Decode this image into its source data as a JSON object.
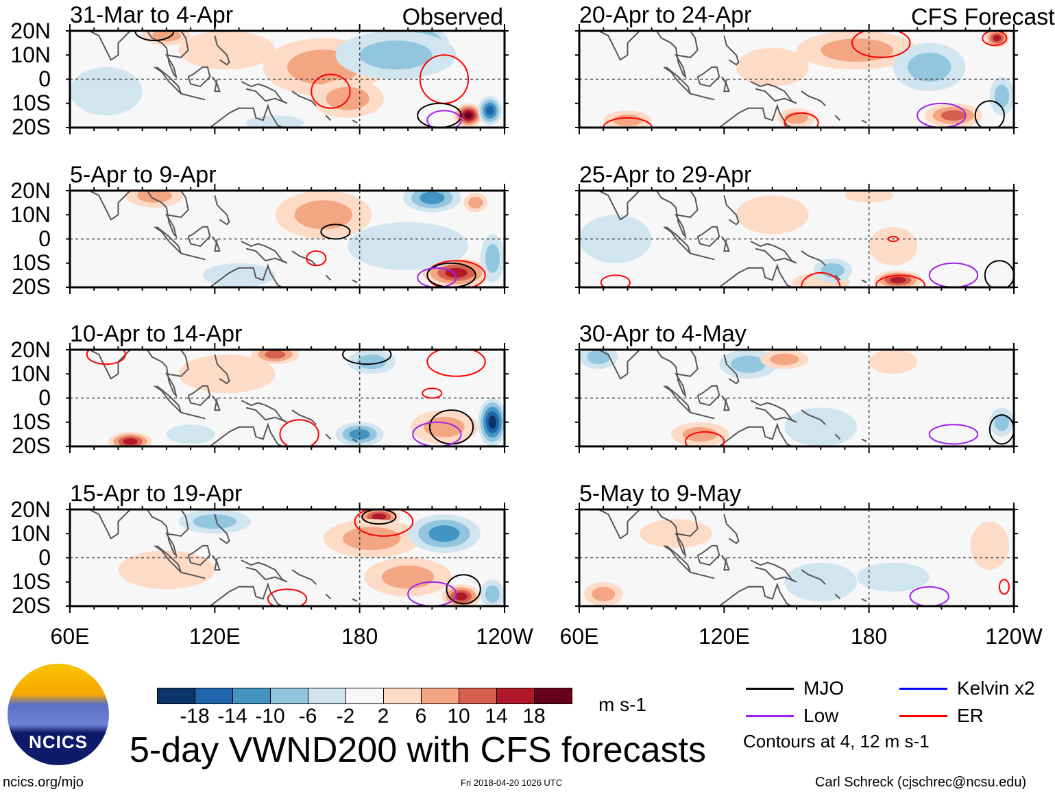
{
  "column_labels": {
    "left": "Observed",
    "right": "CFS Forecast"
  },
  "lat_ticks": [
    "20N",
    "10N",
    "0",
    "10S",
    "20S"
  ],
  "lon_ticks": [
    "60E",
    "120E",
    "180",
    "120W"
  ],
  "colors": [
    "#0b3468",
    "#2166ac",
    "#4393c3",
    "#92c5de",
    "#d1e5f0",
    "#f7f7f7",
    "#fddbc7",
    "#f4a582",
    "#d6604d",
    "#b2182b",
    "#67001f"
  ],
  "colorbar": {
    "labels": [
      "-18",
      "-14",
      "-10",
      "-6",
      "-2",
      "2",
      "6",
      "10",
      "14",
      "18"
    ],
    "units": "m s-1"
  },
  "legend": {
    "items": [
      {
        "label": "MJO",
        "color": "#000000"
      },
      {
        "label": "Kelvin x2",
        "color": "#0000ff"
      },
      {
        "label": "Low",
        "color": "#a020f0"
      },
      {
        "label": "ER",
        "color": "#ff0000"
      }
    ],
    "note": "Contours at 4, 12 m s-1"
  },
  "title": "5-day VWND200 with CFS forecasts",
  "logo_text": "NCICS",
  "footer": {
    "left": "ncics.org/mjo",
    "center": "Fri 2018-04-20 1026 UTC",
    "right": "Carl Schreck (cjschrec@ncsu.edu)"
  },
  "chart_data": {
    "type": "heatmap",
    "variable": "200-hPa meridional wind anomaly",
    "xlim": [
      60,
      240
    ],
    "ylim": [
      -20,
      20
    ],
    "panels": [
      {
        "title": "31-Mar to 4-Apr",
        "column": "left",
        "anomalies": [
          [
            125,
            12,
            5,
            20,
            8
          ],
          [
            165,
            5,
            6,
            25,
            12
          ],
          [
            175,
            -8,
            7,
            15,
            8
          ],
          [
            205,
            15,
            -14,
            12,
            7
          ],
          [
            195,
            10,
            -6,
            25,
            10
          ],
          [
            225,
            -15,
            18,
            6,
            5
          ],
          [
            234,
            -13,
            -16,
            5,
            6
          ],
          [
            100,
            18,
            6,
            10,
            4
          ],
          [
            75,
            -5,
            -3,
            15,
            10
          ],
          [
            145,
            -18,
            -5,
            12,
            3
          ]
        ],
        "contours": [
          [
            "ER",
            168,
            -5,
            8,
            7
          ],
          [
            "ER",
            215,
            0,
            10,
            10
          ],
          [
            "MJO",
            213,
            -15,
            9,
            5
          ],
          [
            "Low",
            215,
            -17,
            7,
            4
          ],
          [
            "MJO",
            95,
            20,
            8,
            4
          ]
        ]
      },
      {
        "title": "5-Apr to 9-Apr",
        "column": "left",
        "anomalies": [
          [
            95,
            18,
            7,
            12,
            5
          ],
          [
            165,
            10,
            6,
            20,
            10
          ],
          [
            220,
            -14,
            16,
            14,
            6
          ],
          [
            210,
            17,
            -12,
            12,
            6
          ],
          [
            235,
            -8,
            -6,
            5,
            10
          ],
          [
            200,
            -3,
            -4,
            25,
            10
          ],
          [
            130,
            -15,
            -5,
            15,
            5
          ],
          [
            228,
            15,
            8,
            5,
            4
          ]
        ],
        "contours": [
          [
            "MJO",
            170,
            3,
            6,
            3
          ],
          [
            "ER",
            220,
            -15,
            12,
            6
          ],
          [
            "MJO",
            218,
            -15,
            10,
            5
          ],
          [
            "Low",
            212,
            -16,
            8,
            4
          ],
          [
            "ER",
            162,
            -8,
            4,
            3
          ]
        ]
      },
      {
        "title": "10-Apr to 14-Apr",
        "column": "left",
        "anomalies": [
          [
            85,
            -18,
            15,
            9,
            4
          ],
          [
            145,
            18,
            12,
            10,
            4
          ],
          [
            235,
            -10,
            -18,
            6,
            10
          ],
          [
            185,
            15,
            -8,
            10,
            5
          ],
          [
            215,
            -12,
            8,
            14,
            7
          ],
          [
            180,
            -15,
            -10,
            10,
            5
          ],
          [
            125,
            10,
            4,
            20,
            8
          ],
          [
            110,
            -15,
            -5,
            10,
            4
          ]
        ],
        "contours": [
          [
            "ER",
            75,
            18,
            8,
            4
          ],
          [
            "ER",
            220,
            15,
            12,
            6
          ],
          [
            "ER",
            155,
            -15,
            8,
            6
          ],
          [
            "MJO",
            218,
            -12,
            9,
            7
          ],
          [
            "Low",
            212,
            -15,
            10,
            5
          ],
          [
            "MJO",
            183,
            18,
            10,
            4
          ],
          [
            "ER",
            210,
            2,
            4,
            2
          ]
        ]
      },
      {
        "title": "15-Apr to 19-Apr",
        "column": "left",
        "anomalies": [
          [
            188,
            17,
            16,
            9,
            4
          ],
          [
            185,
            8,
            6,
            20,
            8
          ],
          [
            200,
            -8,
            6,
            18,
            8
          ],
          [
            222,
            -16,
            14,
            8,
            5
          ],
          [
            215,
            10,
            -10,
            15,
            8
          ],
          [
            235,
            -15,
            -8,
            5,
            6
          ],
          [
            120,
            15,
            -6,
            15,
            5
          ],
          [
            100,
            -5,
            3,
            20,
            8
          ]
        ],
        "contours": [
          [
            "ER",
            190,
            15,
            12,
            6
          ],
          [
            "MJO",
            188,
            17,
            7,
            3
          ],
          [
            "MJO",
            223,
            -13,
            7,
            6
          ],
          [
            "Low",
            210,
            -15,
            10,
            5
          ],
          [
            "ER",
            150,
            -17,
            8,
            4
          ]
        ]
      },
      {
        "title": "20-Apr to 24-Apr",
        "column": "right",
        "anomalies": [
          [
            175,
            12,
            6,
            25,
            8
          ],
          [
            140,
            5,
            5,
            15,
            8
          ],
          [
            215,
            -15,
            10,
            12,
            5
          ],
          [
            233,
            17,
            14,
            5,
            4
          ],
          [
            205,
            5,
            -6,
            15,
            10
          ],
          [
            235,
            -7,
            -8,
            5,
            8
          ],
          [
            80,
            -17,
            6,
            10,
            4
          ],
          [
            150,
            -16,
            7,
            8,
            4
          ]
        ],
        "contours": [
          [
            "ER",
            185,
            15,
            12,
            6
          ],
          [
            "Low",
            210,
            -15,
            10,
            5
          ],
          [
            "MJO",
            230,
            -15,
            6,
            6
          ],
          [
            "ER",
            80,
            -20,
            10,
            4
          ],
          [
            "ER",
            152,
            -18,
            7,
            4
          ],
          [
            "ER",
            232,
            17,
            5,
            3
          ]
        ]
      },
      {
        "title": "25-Apr to 29-Apr",
        "column": "right",
        "anomalies": [
          [
            190,
            -3,
            5,
            10,
            8
          ],
          [
            192,
            -17,
            14,
            10,
            4
          ],
          [
            160,
            -18,
            5,
            12,
            4
          ],
          [
            140,
            10,
            4,
            15,
            8
          ],
          [
            75,
            0,
            -4,
            15,
            10
          ],
          [
            165,
            -13,
            -6,
            8,
            5
          ],
          [
            180,
            18,
            4,
            10,
            3
          ]
        ],
        "contours": [
          [
            "ER",
            190,
            0,
            2,
            1
          ],
          [
            "ER",
            160,
            -20,
            8,
            6
          ],
          [
            "ER",
            193,
            -19,
            10,
            4
          ],
          [
            "Low",
            215,
            -15,
            10,
            5
          ],
          [
            "MJO",
            234,
            -15,
            6,
            6
          ],
          [
            "ER",
            75,
            -18,
            6,
            3
          ]
        ]
      },
      {
        "title": "30-Apr to 4-May",
        "column": "right",
        "anomalies": [
          [
            68,
            17,
            -8,
            8,
            5
          ],
          [
            130,
            14,
            -6,
            12,
            6
          ],
          [
            145,
            16,
            6,
            10,
            4
          ],
          [
            190,
            15,
            4,
            10,
            5
          ],
          [
            110,
            -15,
            6,
            12,
            5
          ],
          [
            160,
            -12,
            -4,
            15,
            8
          ],
          [
            235,
            -10,
            -6,
            5,
            6
          ]
        ],
        "contours": [
          [
            "ER",
            112,
            -18,
            8,
            4
          ],
          [
            "Low",
            215,
            -15,
            10,
            4
          ],
          [
            "MJO",
            235,
            -13,
            5,
            6
          ]
        ]
      },
      {
        "title": "5-May to 9-May",
        "column": "right",
        "anomalies": [
          [
            70,
            -15,
            6,
            8,
            5
          ],
          [
            160,
            -10,
            -4,
            15,
            8
          ],
          [
            230,
            5,
            4,
            8,
            10
          ],
          [
            190,
            -8,
            -3,
            15,
            6
          ],
          [
            100,
            10,
            3,
            15,
            6
          ]
        ],
        "contours": [
          [
            "Low",
            205,
            -16,
            8,
            4
          ],
          [
            "ER",
            236,
            -12,
            2,
            3
          ]
        ]
      }
    ]
  }
}
